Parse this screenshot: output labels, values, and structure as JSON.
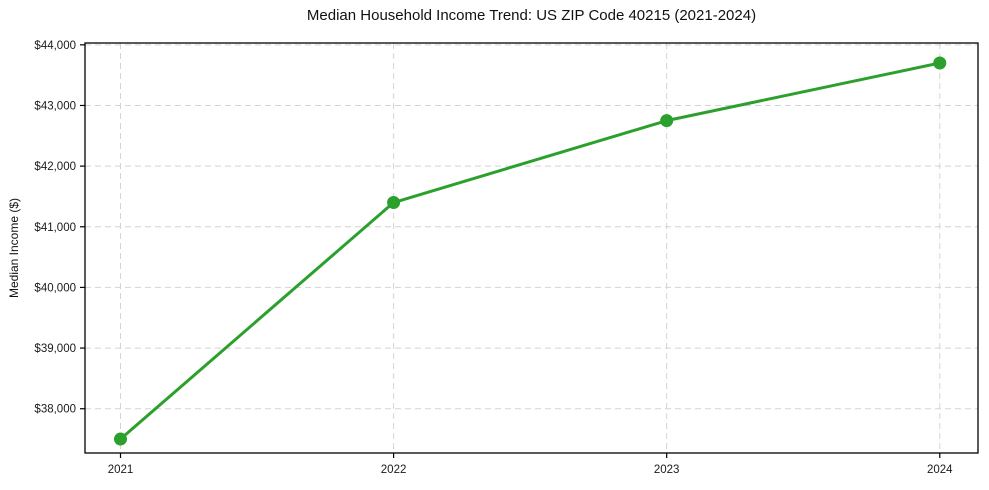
{
  "chart_data": {
    "type": "line",
    "title": "Median Household Income Trend: US ZIP Code 40215 (2021-2024)",
    "xlabel": "",
    "ylabel": "Median Income ($)",
    "x": [
      2021,
      2022,
      2023,
      2024
    ],
    "values": [
      37500,
      41400,
      42750,
      43700
    ],
    "series": [
      {
        "name": "Median Household Income",
        "values": [
          37500,
          41400,
          42750,
          43700
        ]
      }
    ],
    "xticks": {
      "values": [
        2021,
        2022,
        2023,
        2024
      ],
      "labels": [
        "2021",
        "2022",
        "2023",
        "2024"
      ]
    },
    "yticks": {
      "values": [
        38000,
        39000,
        40000,
        41000,
        42000,
        43000,
        44000
      ],
      "labels": [
        "$38,000",
        "$39,000",
        "$40,000",
        "$41,000",
        "$42,000",
        "$43,000",
        "$44,000"
      ]
    },
    "xlim": [
      2020.87,
      2024.14
    ],
    "ylim": [
      37270,
      44030
    ],
    "line_color": "#2ca02c",
    "marker_color": "#2ca02c",
    "marker": "circle",
    "grid": "dashed",
    "grid_color": "#d4d4d4",
    "axis_color": "#000000",
    "text_color": "#1a1a1a",
    "legend": "none",
    "background": "#ffffff"
  }
}
